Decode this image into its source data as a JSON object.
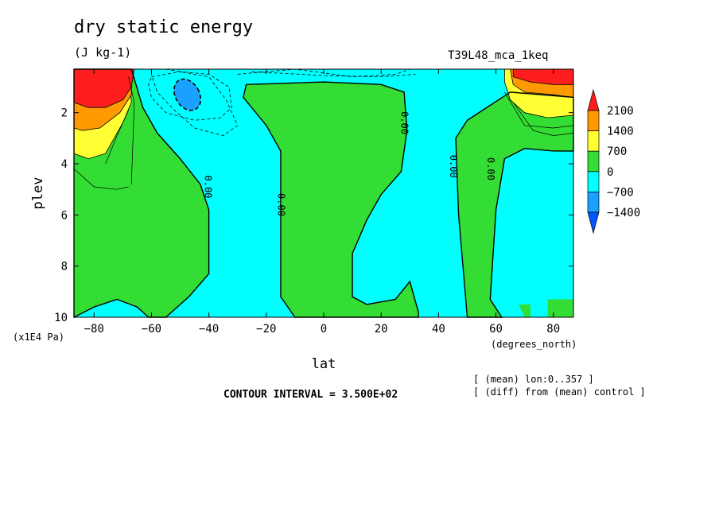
{
  "header": {
    "title": "dry static energy",
    "units": "(J kg-1)",
    "run_id": "T39L48_mca_1keq"
  },
  "notes": {
    "contour_interval": "CONTOUR INTERVAL = 3.500E+02",
    "mean_note": "[ (mean) lon:0..357 ]",
    "diff_note": "[ (diff) from (mean) control ]"
  },
  "chart_data": {
    "type": "contour",
    "title": "dry static energy",
    "subtitle": "(J kg-1)",
    "xlabel": "lat",
    "xunit": "(degrees_north)",
    "ylabel": "plev",
    "yunit": "(x1E4 Pa)",
    "xlim": [
      -87,
      87
    ],
    "ylim": [
      10,
      0.3
    ],
    "x_ticks": [
      -80,
      -60,
      -40,
      -20,
      0,
      20,
      40,
      60,
      80
    ],
    "y_ticks": [
      2,
      4,
      6,
      8,
      10
    ],
    "contour_interval": 350,
    "contour_labels": [
      "0.00",
      "0.00",
      "0.00",
      "0.00",
      "0.00"
    ],
    "colorbar": {
      "labels": [
        2100,
        1400,
        700,
        0,
        -700,
        -1400
      ],
      "colors": [
        "#ff1e1e",
        "#ff9900",
        "#ffff33",
        "#33dd33",
        "#00ffff",
        "#1aa1ff",
        "#0055ff"
      ]
    },
    "regions": [
      {
        "level": "2100+",
        "color": "#ff1e1e",
        "note": "upper-left max near 80S",
        "polygon": [
          [
            -87,
            0.3
          ],
          [
            -66,
            0.3
          ],
          [
            -67,
            1.0
          ],
          [
            -70,
            1.5
          ],
          [
            -76,
            1.8
          ],
          [
            -82,
            1.8
          ],
          [
            -87,
            1.6
          ]
        ]
      },
      {
        "level": "2100+",
        "color": "#ff1e1e",
        "note": "upper-right max near 70N",
        "polygon": [
          [
            66,
            0.3
          ],
          [
            87,
            0.3
          ],
          [
            87,
            0.9
          ],
          [
            80,
            0.9
          ],
          [
            72,
            0.8
          ],
          [
            66,
            0.6
          ]
        ]
      }
    ]
  }
}
